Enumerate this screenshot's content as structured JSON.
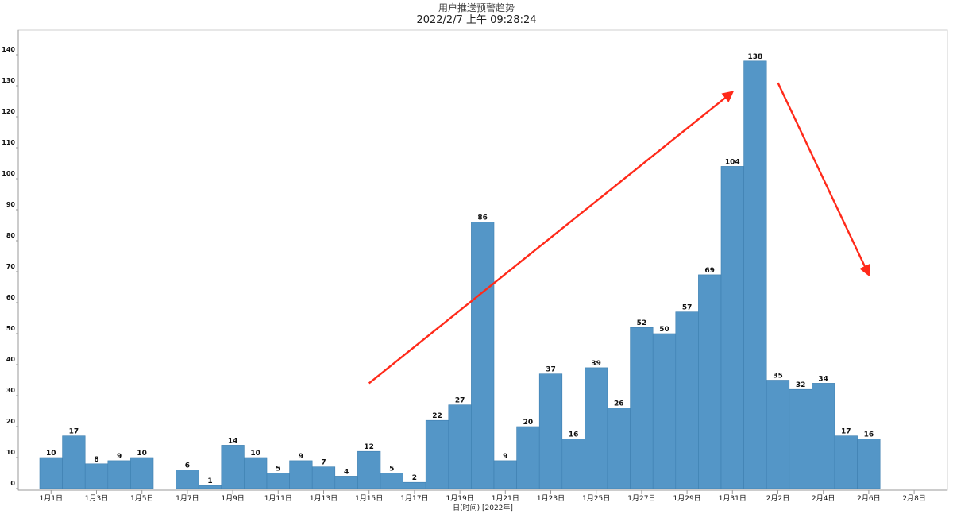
{
  "chart_data": {
    "type": "bar",
    "title": "用户推送预警趋势",
    "subtitle": "2022/2/7 上午 09:28:24",
    "xlabel": "日(时间) [2022年]",
    "ylabel": "",
    "ylim": [
      0,
      145
    ],
    "yticks": [
      0,
      10,
      20,
      30,
      40,
      50,
      60,
      70,
      80,
      90,
      100,
      110,
      120,
      130,
      140
    ],
    "categories": [
      "1月1日",
      "1月2日",
      "1月3日",
      "1月4日",
      "1月5日",
      "1月6日",
      "1月7日",
      "1月8日",
      "1月9日",
      "1月10日",
      "1月11日",
      "1月12日",
      "1月13日",
      "1月14日",
      "1月15日",
      "1月16日",
      "1月17日",
      "1月18日",
      "1月19日",
      "1月20日",
      "1月21日",
      "1月22日",
      "1月23日",
      "1月24日",
      "1月25日",
      "1月26日",
      "1月27日",
      "1月28日",
      "1月29日",
      "1月30日",
      "1月31日",
      "2月1日",
      "2月2日",
      "2月3日",
      "2月4日",
      "2月5日",
      "2月6日",
      "2月7日",
      "2月8日"
    ],
    "values": [
      10,
      17,
      8,
      9,
      10,
      null,
      6,
      1,
      14,
      10,
      5,
      9,
      7,
      4,
      12,
      5,
      2,
      22,
      27,
      86,
      9,
      20,
      37,
      16,
      39,
      26,
      52,
      50,
      57,
      69,
      104,
      138,
      35,
      32,
      34,
      17,
      16,
      null,
      null
    ],
    "tick_labels": [
      "1月1日",
      "1月3日",
      "1月5日",
      "1月7日",
      "1月9日",
      "1月11日",
      "1月13日",
      "1月15日",
      "1月17日",
      "1月19日",
      "1月21日",
      "1月23日",
      "1月25日",
      "1月27日",
      "1月29日",
      "1月31日",
      "2月2日",
      "2月4日",
      "2月6日",
      "2月8日"
    ],
    "grid": false,
    "legend": "none",
    "bar_color": "#5496c7",
    "annotations": [
      {
        "type": "arrow",
        "color": "#ff2a1a",
        "from": [
          "1月15日",
          34
        ],
        "to": [
          "1月31日",
          128
        ]
      },
      {
        "type": "arrow",
        "color": "#ff2a1a",
        "from": [
          "2月2日",
          131
        ],
        "to": [
          "2月6日",
          69
        ]
      }
    ]
  }
}
